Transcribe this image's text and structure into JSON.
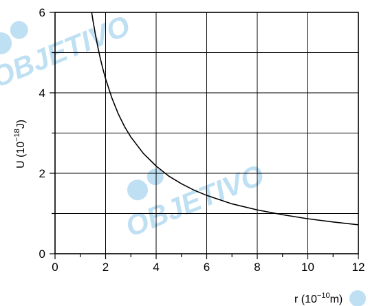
{
  "chart_data": {
    "type": "line",
    "title": "",
    "xlabel": {
      "base": "r (10",
      "exp": "−10",
      "tail": "m)"
    },
    "ylabel": {
      "base": "U (10",
      "exp": "−18",
      "tail": "J)"
    },
    "xlim": [
      0,
      12
    ],
    "ylim": [
      0,
      6
    ],
    "x_ticks": [
      0,
      2,
      4,
      6,
      8,
      10,
      12
    ],
    "y_ticks": [
      0,
      2,
      4,
      6
    ],
    "x_grid_step": 2,
    "y_grid_step": 1,
    "grid": true,
    "legend": "none",
    "series": [
      {
        "x": [
          1.45,
          1.5,
          1.6,
          1.7,
          1.8,
          1.9,
          2.0,
          2.25,
          2.5,
          2.75,
          3.0,
          3.5,
          4.0,
          4.5,
          5.0,
          5.5,
          6.0,
          7.0,
          8.0,
          9.0,
          10.0,
          11.0,
          12.0
        ],
        "y": [
          6.0,
          5.8,
          5.44,
          5.12,
          4.83,
          4.58,
          4.35,
          3.87,
          3.48,
          3.16,
          2.9,
          2.49,
          2.18,
          1.93,
          1.74,
          1.58,
          1.45,
          1.24,
          1.09,
          0.97,
          0.87,
          0.79,
          0.72
        ],
        "color": "#000000"
      }
    ]
  },
  "watermark": {
    "text": "OBJETIVO",
    "color": "#bfe0f3"
  }
}
